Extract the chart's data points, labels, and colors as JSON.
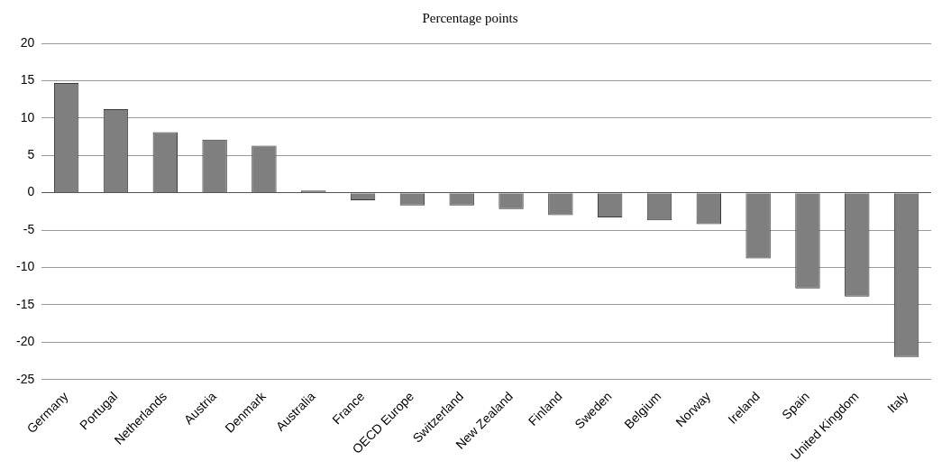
{
  "chart_data": {
    "type": "bar",
    "title": "Percentage points",
    "categories": [
      "Germany",
      "Portugal",
      "Netherlands",
      "Austria",
      "Denmark",
      "Australia",
      "France",
      "OECD Europe",
      "Switzerland",
      "New Zealand",
      "Finland",
      "Sweden",
      "Belgium",
      "Norway",
      "Ireland",
      "Spain",
      "United Kingdom",
      "Italy"
    ],
    "values": [
      14.7,
      11.2,
      8.1,
      7.1,
      6.3,
      0.3,
      -1.0,
      -1.7,
      -1.7,
      -2.2,
      -3.0,
      -3.3,
      -3.7,
      -4.2,
      -8.8,
      -12.8,
      -13.9,
      -22.0
    ],
    "color": "#7f7f7f",
    "ylim": [
      -25,
      20
    ],
    "yticks": [
      -25,
      -20,
      -15,
      -10,
      -5,
      0,
      5,
      10,
      15,
      20
    ],
    "grid": "y",
    "legend": false
  }
}
